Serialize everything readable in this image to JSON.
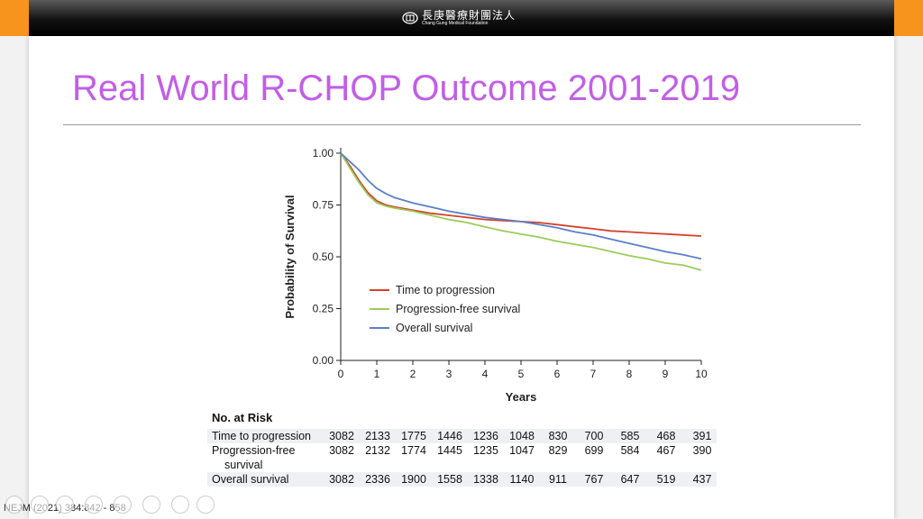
{
  "header": {
    "logo_cn": "長庚醫療財團法人",
    "logo_en": "Chang Gung Medical Foundation"
  },
  "slide": {
    "title": "Real World R-CHOP Outcome 2001-2019",
    "citation": "NEJM (2021) 384:842 - 858"
  },
  "colors": {
    "title": "#c25ee6",
    "orange_accent": "#f7941d"
  },
  "chart_data": {
    "type": "line",
    "xlabel": "Years",
    "ylabel": "Probability of Survival",
    "xlim": [
      0,
      10
    ],
    "ylim": [
      0,
      1
    ],
    "x_ticks": [
      0,
      1,
      2,
      3,
      4,
      5,
      6,
      7,
      8,
      9,
      10
    ],
    "y_ticks": [
      "0.00",
      "0.25",
      "0.50",
      "0.75",
      "1.00"
    ],
    "legend_position": "lower-left",
    "series": [
      {
        "name": "Time to progression",
        "color": "#d0442c",
        "x": [
          0,
          0.25,
          0.5,
          0.75,
          1,
          1.25,
          1.5,
          2,
          2.5,
          3,
          3.5,
          4,
          4.5,
          5,
          5.5,
          6,
          6.5,
          7,
          7.5,
          8,
          8.5,
          9,
          9.5,
          10
        ],
        "y": [
          1.0,
          0.94,
          0.87,
          0.81,
          0.77,
          0.75,
          0.74,
          0.725,
          0.71,
          0.7,
          0.69,
          0.68,
          0.675,
          0.67,
          0.665,
          0.655,
          0.645,
          0.635,
          0.625,
          0.62,
          0.615,
          0.61,
          0.605,
          0.6
        ]
      },
      {
        "name": "Progression-free survival",
        "color": "#9ccc5a",
        "x": [
          0,
          0.25,
          0.5,
          0.75,
          1,
          1.25,
          1.5,
          2,
          2.5,
          3,
          3.5,
          4,
          4.5,
          5,
          5.5,
          6,
          6.5,
          7,
          7.5,
          8,
          8.5,
          9,
          9.5,
          10
        ],
        "y": [
          1.0,
          0.93,
          0.86,
          0.8,
          0.76,
          0.745,
          0.735,
          0.72,
          0.7,
          0.68,
          0.665,
          0.645,
          0.625,
          0.61,
          0.595,
          0.575,
          0.56,
          0.545,
          0.525,
          0.505,
          0.49,
          0.47,
          0.46,
          0.435
        ]
      },
      {
        "name": "Overall survival",
        "color": "#5b7fc7",
        "x": [
          0,
          0.25,
          0.5,
          0.75,
          1,
          1.25,
          1.5,
          2,
          2.5,
          3,
          3.5,
          4,
          4.5,
          5,
          5.5,
          6,
          6.5,
          7,
          7.5,
          8,
          8.5,
          9,
          9.5,
          10
        ],
        "y": [
          1.0,
          0.96,
          0.92,
          0.87,
          0.83,
          0.805,
          0.785,
          0.76,
          0.74,
          0.72,
          0.705,
          0.69,
          0.68,
          0.67,
          0.655,
          0.64,
          0.62,
          0.605,
          0.585,
          0.565,
          0.545,
          0.525,
          0.51,
          0.49
        ]
      }
    ]
  },
  "risk_table": {
    "heading": "No. at Risk",
    "rows": [
      {
        "label": [
          "Time to progression"
        ],
        "values": [
          "3082",
          "2133",
          "1775",
          "1446",
          "1236",
          "1048",
          "830",
          "700",
          "585",
          "468",
          "391"
        ]
      },
      {
        "label": [
          "Progression-free",
          "survival"
        ],
        "values": [
          "3082",
          "2132",
          "1774",
          "1445",
          "1235",
          "1047",
          "829",
          "699",
          "584",
          "467",
          "390"
        ]
      },
      {
        "label": [
          "Overall survival"
        ],
        "values": [
          "3082",
          "2336",
          "1900",
          "1558",
          "1338",
          "1140",
          "911",
          "767",
          "647",
          "519",
          "437"
        ]
      }
    ]
  }
}
